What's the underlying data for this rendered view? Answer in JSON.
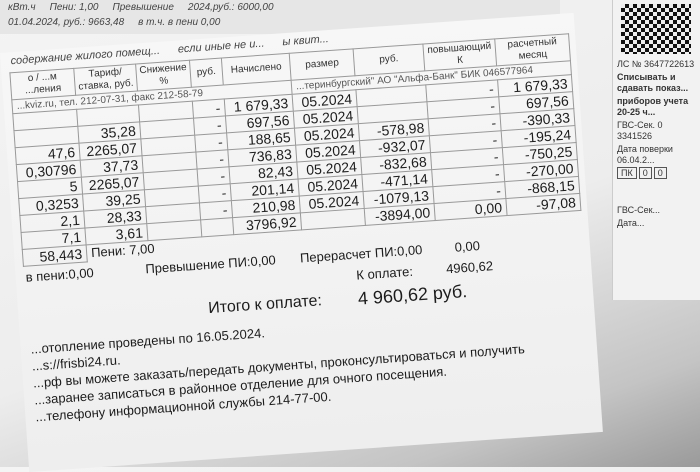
{
  "back_sheet": {
    "lines": [
      "кВт.ч",
      "Пени: 1,00",
      "Превышение",
      "01.04.2024, руб.: 9663,48",
      "в т.ч. в пени 0,00",
      "2024,руб.: 6000,00"
    ]
  },
  "header_text": [
    "содержание жилого помещ...",
    "если иные не и...",
    "ы квит..."
  ],
  "columns": {
    "unit": "о / ...м ...ления",
    "tariff": "Тариф/ ставка, руб.",
    "reduction": "Снижение %",
    "rub": "руб.",
    "charged": "Начислено",
    "size": "размер",
    "rub2": "руб.",
    "raising": "повышающий К",
    "calc_month": "расчетный месяц"
  },
  "contact_line": "...kviz.ru, тел. 212-07-31, факс 212-58-79",
  "bank_line": "...теринбургский\" АО \"Альфа-Банк\" БИК 046577964",
  "rows": [
    {
      "qty": "",
      "tariff": "",
      "dash": "-",
      "amount": "1 679,33",
      "period": "05.2024",
      "recalc": "",
      "dash2": "-",
      "total": "1 679,33"
    },
    {
      "qty": "",
      "tariff": "35,28",
      "dash": "-",
      "amount": "697,56",
      "period": "05.2024",
      "recalc": "",
      "dash2": "-",
      "total": "697,56"
    },
    {
      "qty": "47,6",
      "tariff": "2265,07",
      "dash": "-",
      "amount": "188,65",
      "period": "05.2024",
      "recalc": "-578,98",
      "dash2": "-",
      "total": "-390,33"
    },
    {
      "qty": "0,30796",
      "tariff": "37,73",
      "dash": "-",
      "amount": "736,83",
      "period": "05.2024",
      "recalc": "-932,07",
      "dash2": "-",
      "total": "-195,24"
    },
    {
      "qty": "5",
      "tariff": "2265,07",
      "dash": "-",
      "amount": "82,43",
      "period": "05.2024",
      "recalc": "-832,68",
      "dash2": "-",
      "total": "-750,25"
    },
    {
      "qty": "0,3253",
      "tariff": "39,25",
      "dash": "-",
      "amount": "201,14",
      "period": "05.2024",
      "recalc": "-471,14",
      "dash2": "-",
      "total": "-270,00"
    },
    {
      "qty": "2,1",
      "tariff": "28,33",
      "dash": "-",
      "amount": "210,98",
      "period": "05.2024",
      "recalc": "-1079,13",
      "dash2": "-",
      "total": "-868,15"
    },
    {
      "qty": "7,1",
      "tariff": "3,61",
      "dash": "",
      "amount": "3796,92",
      "period": "",
      "recalc": "-3894,00",
      "dash2": "0,00",
      "total": "-97,08"
    }
  ],
  "totals": {
    "qty_total": "58,443",
    "peni": "Пени: 7,00",
    "peni_incl": "в пени:0,00",
    "excess": "Превышение ПИ:0,00",
    "recalc": "Перерасчет ПИ:0,00",
    "zero": "0,00",
    "to_pay_label": "К оплате:",
    "to_pay": "4960,62",
    "grand_label": "Итого к оплате:",
    "grand_value": "4 960,62 руб."
  },
  "notes": [
    "...отопление проведены по 16.05.2024.",
    "...s://frisbi24.ru.",
    "...рф вы можете заказать/передать документы, проконсультироваться и получить",
    "...заранее записаться в районное отделение для очного посещения.",
    "...телефону информационной службы 214-77-00."
  ],
  "receipt": {
    "account": "ЛС № 3647722613",
    "meter_title": "Списывать и сдавать показ...",
    "meter_sub": "приборов учета 20-25 ч...",
    "meter1": "ГВС-Сек. 0 3341526",
    "check_date": "Дата поверки 06.04.2...",
    "cells": [
      "ПК",
      "0",
      "0"
    ],
    "meter2": "ГВС-Сек...",
    "date2": "Дата..."
  }
}
